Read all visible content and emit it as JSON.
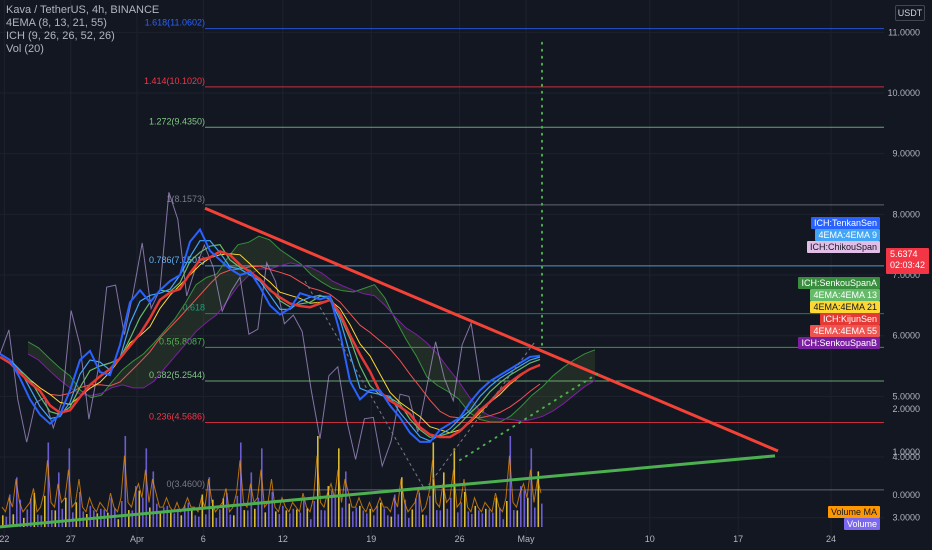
{
  "legend": {
    "symbol": "Kava / TetherUS, 4h, BINANCE",
    "ema": "4EMA (8, 13, 21, 55)",
    "ich": "ICH (9, 26, 26, 52, 26)",
    "vol": "Vol (20)"
  },
  "currency_label": "USDT",
  "price_now": {
    "value": "5.6374",
    "countdown": "02:03:42"
  },
  "indicator_tags": [
    {
      "label": "ICH:TenkanSen",
      "bg": "#2962ff",
      "fg": "#ffffff"
    },
    {
      "label": "4EMA:4EMA 9",
      "bg": "#42a5f5",
      "fg": "#ffffff"
    },
    {
      "label": "ICH:ChikouSpan",
      "bg": "#e1bee7",
      "fg": "#131722"
    },
    {
      "label": "ICH:SenkouSpanA",
      "bg": "#388e3c",
      "fg": "#ffffff"
    },
    {
      "label": "4EMA:4EMA 13",
      "bg": "#66bb6a",
      "fg": "#ffffff"
    },
    {
      "label": "4EMA:4EMA 21",
      "bg": "#fdd835",
      "fg": "#131722"
    },
    {
      "label": "ICH:KijunSen",
      "bg": "#e53935",
      "fg": "#ffffff"
    },
    {
      "label": "4EMA:4EMA 55",
      "bg": "#ef5350",
      "fg": "#ffffff"
    },
    {
      "label": "ICH:SenkouSpanB",
      "bg": "#7b1fa2",
      "fg": "#ffffff"
    }
  ],
  "volume_tags": [
    {
      "label": "Volume MA",
      "bg": "#ff9800",
      "fg": "#131722"
    },
    {
      "label": "Volume",
      "bg": "#7b68ee",
      "fg": "#ffffff"
    }
  ],
  "chart_data": {
    "type": "line",
    "title": "Kava / TetherUS, 4h, BINANCE",
    "price_axis": {
      "ylim": [
        2.6,
        11.5
      ],
      "ticks": [
        "11.0000",
        "10.0000",
        "9.0000",
        "8.0000",
        "7.0000",
        "6.0000",
        "5.0000",
        "4.0000",
        "3.0000"
      ],
      "tick_values": [
        11,
        10,
        9,
        8,
        7,
        6,
        5,
        4,
        3
      ]
    },
    "volume_axis": {
      "ticks": [
        "2.0000",
        "1.0000",
        "0.0000"
      ],
      "tick_values": [
        2,
        1,
        0
      ]
    },
    "x_axis": {
      "tick_labels": [
        "22",
        "27",
        "Apr",
        "6",
        "12",
        "19",
        "26",
        "May",
        "10",
        "17",
        "24"
      ]
    },
    "fib_levels": [
      {
        "label": "0(3.4600)",
        "value": 3.46,
        "color": "#787b86"
      },
      {
        "label": "0.236(4.5686)",
        "value": 4.5686,
        "color": "#f23645"
      },
      {
        "label": "0.382(5.2544)",
        "value": 5.2544,
        "color": "#81c784"
      },
      {
        "label": "0.5(5.8087)",
        "value": 5.8087,
        "color": "#4caf50"
      },
      {
        "label": "0.618",
        "value": 6.363,
        "color": "#089981"
      },
      {
        "label": "0.786(7.1501)",
        "value": 7.1501,
        "color": "#64b5f6"
      },
      {
        "label": "1(8.1573)",
        "value": 8.1573,
        "color": "#787b86"
      },
      {
        "label": "1.272(9.4350)",
        "value": 9.435,
        "color": "#81c784"
      },
      {
        "label": "1.414(10.1020)",
        "value": 10.102,
        "color": "#f23645"
      },
      {
        "label": "1.618(11.0602)",
        "value": 11.0602,
        "color": "#2962ff"
      }
    ],
    "trendlines": [
      {
        "name": "resistance",
        "color": "#f44336",
        "from": [
          0.22,
          8.1
        ],
        "to": [
          0.83,
          4.1
        ]
      },
      {
        "name": "support",
        "color": "#4caf50",
        "from": [
          0.0,
          2.85
        ],
        "to": [
          0.83,
          4.02
        ]
      },
      {
        "name": "target",
        "color": "#4caf50",
        "from": [
          0.58,
          5.85
        ],
        "to": [
          0.58,
          10.85
        ]
      }
    ],
    "series": [
      {
        "name": "ICH:TenkanSen",
        "color": "#2962ff"
      },
      {
        "name": "4EMA:4EMA 9",
        "color": "#42a5f5"
      },
      {
        "name": "ICH:ChikouSpan",
        "color": "#e1bee7"
      },
      {
        "name": "ICH:SenkouSpanA",
        "color": "#388e3c"
      },
      {
        "name": "4EMA:4EMA 13",
        "color": "#66bb6a"
      },
      {
        "name": "4EMA:4EMA 21",
        "color": "#fdd835"
      },
      {
        "name": "ICH:KijunSen",
        "color": "#e53935"
      },
      {
        "name": "4EMA:4EMA 55",
        "color": "#ef5350"
      },
      {
        "name": "ICH:SenkouSpanB",
        "color": "#7b1fa2"
      }
    ],
    "price_path": [
      5.7,
      5.5,
      5.1,
      4.8,
      4.6,
      4.5,
      4.9,
      5.3,
      5.9,
      5.6,
      5.2,
      5.5,
      6.2,
      6.9,
      6.6,
      6.5,
      7.0,
      6.8,
      7.2,
      7.9,
      7.6,
      7.2,
      7.3,
      6.9,
      7.1,
      7.0,
      6.6,
      6.4,
      6.3,
      6.6,
      6.8,
      6.5,
      6.7,
      6.6,
      5.5,
      5.0,
      4.9,
      5.3,
      4.9,
      4.8,
      4.5,
      4.3,
      4.2,
      4.3,
      4.6,
      4.5,
      4.8,
      5.0,
      5.2,
      5.3,
      5.4,
      5.5,
      5.6,
      5.7,
      5.64
    ],
    "volume_path": [
      0.3,
      0.2,
      0.5,
      0.3,
      0.9,
      0.4,
      0.2,
      0.3,
      0.4,
      0.7,
      0.2,
      0.3,
      0.6,
      1.3,
      0.4,
      0.3,
      0.8,
      0.4,
      0.5,
      1.1,
      0.3,
      0.4,
      0.9,
      0.3,
      0.2,
      0.5,
      0.3,
      0.2,
      0.4,
      0.3,
      0.2,
      0.6,
      0.3,
      0.2,
      0.5,
      1.4,
      0.4,
      0.3,
      0.6,
      0.8,
      0.5,
      1.1,
      0.4,
      0.9,
      0.6,
      0.3,
      0.3,
      0.5,
      0.3,
      0.2,
      0.4,
      0.2,
      0.3,
      0.5,
      0.3
    ]
  }
}
